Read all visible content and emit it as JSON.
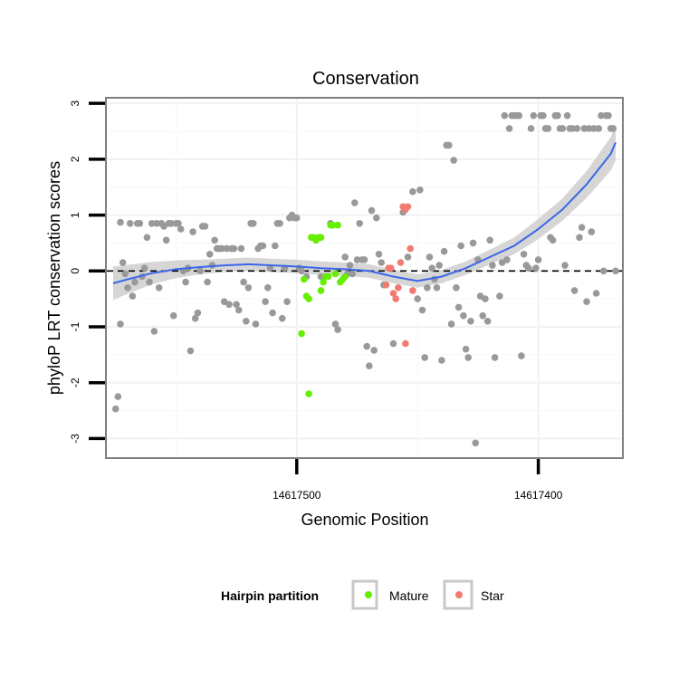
{
  "chart_data": {
    "type": "scatter",
    "title": "Conservation",
    "xlabel": "Genomic Position",
    "ylabel": "phyloP LRT conservation scores",
    "x_reversed": true,
    "xlim": [
      14617579,
      14617365
    ],
    "ylim": [
      -3.35,
      3.1
    ],
    "x_ticks": [
      {
        "value": 14617500,
        "label": "14617500"
      },
      {
        "value": 14617400,
        "label": "14617400"
      }
    ],
    "y_ticks": [
      {
        "value": 3,
        "label": "3"
      },
      {
        "value": 2,
        "label": "2"
      },
      {
        "value": 1,
        "label": "1"
      },
      {
        "value": 0,
        "label": "0"
      },
      {
        "value": -1,
        "label": "-1"
      },
      {
        "value": -2,
        "label": "-2"
      },
      {
        "value": -3,
        "label": "-3"
      }
    ],
    "reference_line": {
      "y": 0,
      "style": "dashed"
    },
    "legend": {
      "title": "Hairpin partition",
      "position": "bottom",
      "entries": [
        {
          "name": "Mature",
          "color": "#66ee00"
        },
        {
          "name": "Star",
          "color": "#f07b72"
        }
      ]
    },
    "colors": {
      "Other": "#999999",
      "Mature": "#66ee00",
      "Star": "#f07b72",
      "smooth": "#3a66e8",
      "band": "#cfcfcf"
    },
    "series": [
      {
        "name": "Other",
        "points": [
          [
            14617575,
            -2.47
          ],
          [
            14617574,
            -2.25
          ],
          [
            14617573,
            -0.95
          ],
          [
            14617573,
            0.87
          ],
          [
            14617572,
            0.15
          ],
          [
            14617571,
            -0.05
          ],
          [
            14617570,
            -0.3
          ],
          [
            14617569,
            0.85
          ],
          [
            14617568,
            -0.45
          ],
          [
            14617567,
            -0.2
          ],
          [
            14617566,
            0.85
          ],
          [
            14617565,
            0.85
          ],
          [
            14617564,
            -0.1
          ],
          [
            14617563,
            0.05
          ],
          [
            14617562,
            0.6
          ],
          [
            14617561,
            -0.2
          ],
          [
            14617560,
            0.85
          ],
          [
            14617559,
            -1.08
          ],
          [
            14617558,
            0.85
          ],
          [
            14617557,
            -0.3
          ],
          [
            14617556,
            0.85
          ],
          [
            14617555,
            0.8
          ],
          [
            14617554,
            0.55
          ],
          [
            14617553,
            0.85
          ],
          [
            14617552,
            0.85
          ],
          [
            14617551,
            -0.8
          ],
          [
            14617550,
            0.85
          ],
          [
            14617549,
            0.85
          ],
          [
            14617548,
            0.75
          ],
          [
            14617547,
            0.0
          ],
          [
            14617546,
            -0.2
          ],
          [
            14617545,
            0.05
          ],
          [
            14617544,
            -1.43
          ],
          [
            14617543,
            0.7
          ],
          [
            14617542,
            -0.85
          ],
          [
            14617541,
            -0.75
          ],
          [
            14617540,
            0.0
          ],
          [
            14617539,
            0.8
          ],
          [
            14617538,
            0.8
          ],
          [
            14617537,
            -0.2
          ],
          [
            14617536,
            0.3
          ],
          [
            14617535,
            0.1
          ],
          [
            14617534,
            0.55
          ],
          [
            14617533,
            0.4
          ],
          [
            14617532,
            0.4
          ],
          [
            14617531,
            0.4
          ],
          [
            14617530,
            -0.55
          ],
          [
            14617529,
            0.4
          ],
          [
            14617528,
            -0.6
          ],
          [
            14617527,
            0.4
          ],
          [
            14617526,
            0.4
          ],
          [
            14617525,
            -0.6
          ],
          [
            14617524,
            -0.7
          ],
          [
            14617523,
            0.4
          ],
          [
            14617522,
            -0.2
          ],
          [
            14617521,
            -0.9
          ],
          [
            14617520,
            -0.3
          ],
          [
            14617519,
            0.85
          ],
          [
            14617518,
            0.85
          ],
          [
            14617517,
            -0.95
          ],
          [
            14617516,
            0.4
          ],
          [
            14617515,
            0.45
          ],
          [
            14617514,
            0.45
          ],
          [
            14617513,
            -0.55
          ],
          [
            14617512,
            -0.3
          ],
          [
            14617511,
            0.05
          ],
          [
            14617510,
            -0.75
          ],
          [
            14617509,
            0.45
          ],
          [
            14617508,
            0.85
          ],
          [
            14617507,
            0.85
          ],
          [
            14617506,
            -0.85
          ],
          [
            14617505,
            0.05
          ],
          [
            14617504,
            -0.55
          ],
          [
            14617503,
            0.95
          ],
          [
            14617502,
            1.0
          ],
          [
            14617501,
            0.95
          ],
          [
            14617500,
            0.95
          ],
          [
            14617499,
            0.05
          ],
          [
            14617498,
            0.0
          ],
          [
            14617496,
            -0.1
          ],
          [
            14617490,
            -0.1
          ],
          [
            14617486,
            0.85
          ],
          [
            14617484,
            -0.95
          ],
          [
            14617483,
            -1.05
          ],
          [
            14617480,
            0.25
          ],
          [
            14617479,
            -0.05
          ],
          [
            14617478,
            0.1
          ],
          [
            14617477,
            -0.05
          ],
          [
            14617476,
            1.22
          ],
          [
            14617475,
            0.2
          ],
          [
            14617474,
            0.85
          ],
          [
            14617473,
            0.2
          ],
          [
            14617472,
            0.2
          ],
          [
            14617471,
            -1.35
          ],
          [
            14617470,
            -1.7
          ],
          [
            14617469,
            1.08
          ],
          [
            14617468,
            -1.42
          ],
          [
            14617467,
            0.95
          ],
          [
            14617466,
            0.3
          ],
          [
            14617465,
            0.15
          ],
          [
            14617464,
            -0.25
          ],
          [
            14617460,
            -1.3
          ],
          [
            14617456,
            1.05
          ],
          [
            14617454,
            0.25
          ],
          [
            14617452,
            1.42
          ],
          [
            14617450,
            -0.5
          ],
          [
            14617449,
            1.45
          ],
          [
            14617448,
            -0.7
          ],
          [
            14617447,
            -1.55
          ],
          [
            14617446,
            -0.3
          ],
          [
            14617445,
            0.25
          ],
          [
            14617444,
            0.05
          ],
          [
            14617443,
            -0.15
          ],
          [
            14617442,
            -0.3
          ],
          [
            14617441,
            0.1
          ],
          [
            14617440,
            -1.6
          ],
          [
            14617439,
            0.35
          ],
          [
            14617438,
            2.25
          ],
          [
            14617437,
            2.25
          ],
          [
            14617436,
            -0.95
          ],
          [
            14617435,
            1.98
          ],
          [
            14617434,
            -0.3
          ],
          [
            14617433,
            -0.65
          ],
          [
            14617432,
            0.45
          ],
          [
            14617431,
            -0.8
          ],
          [
            14617430,
            -1.4
          ],
          [
            14617429,
            -1.55
          ],
          [
            14617428,
            -0.9
          ],
          [
            14617427,
            0.5
          ],
          [
            14617426,
            -3.08
          ],
          [
            14617425,
            0.2
          ],
          [
            14617424,
            -0.45
          ],
          [
            14617423,
            -0.8
          ],
          [
            14617422,
            -0.5
          ],
          [
            14617421,
            -0.9
          ],
          [
            14617420,
            0.55
          ],
          [
            14617419,
            0.1
          ],
          [
            14617418,
            -1.55
          ],
          [
            14617416,
            -0.45
          ],
          [
            14617415,
            0.15
          ],
          [
            14617414,
            2.78
          ],
          [
            14617413,
            0.2
          ],
          [
            14617412,
            2.55
          ],
          [
            14617411,
            2.78
          ],
          [
            14617410,
            2.78
          ],
          [
            14617409,
            2.78
          ],
          [
            14617408,
            2.78
          ],
          [
            14617407,
            -1.52
          ],
          [
            14617406,
            0.3
          ],
          [
            14617405,
            0.1
          ],
          [
            14617404,
            0.05
          ],
          [
            14617403,
            2.55
          ],
          [
            14617402,
            2.78
          ],
          [
            14617401,
            0.05
          ],
          [
            14617400,
            0.2
          ],
          [
            14617399,
            2.78
          ],
          [
            14617398,
            2.78
          ],
          [
            14617397,
            2.55
          ],
          [
            14617396,
            2.55
          ],
          [
            14617395,
            0.6
          ],
          [
            14617394,
            0.55
          ],
          [
            14617393,
            2.78
          ],
          [
            14617392,
            2.78
          ],
          [
            14617391,
            2.55
          ],
          [
            14617390,
            2.55
          ],
          [
            14617389,
            0.1
          ],
          [
            14617388,
            2.78
          ],
          [
            14617387,
            2.55
          ],
          [
            14617386,
            2.55
          ],
          [
            14617385,
            -0.35
          ],
          [
            14617384,
            2.55
          ],
          [
            14617383,
            0.6
          ],
          [
            14617382,
            0.78
          ],
          [
            14617381,
            2.55
          ],
          [
            14617380,
            -0.55
          ],
          [
            14617379,
            2.55
          ],
          [
            14617378,
            0.7
          ],
          [
            14617377,
            2.55
          ],
          [
            14617376,
            -0.4
          ],
          [
            14617375,
            2.55
          ],
          [
            14617374,
            2.78
          ],
          [
            14617373,
            0.0
          ],
          [
            14617372,
            2.78
          ],
          [
            14617371,
            2.78
          ],
          [
            14617370,
            2.55
          ],
          [
            14617369,
            2.55
          ],
          [
            14617368,
            0.0
          ]
        ]
      },
      {
        "name": "Mature",
        "points": [
          [
            14617497,
            -0.15
          ],
          [
            14617496,
            -0.45
          ],
          [
            14617495,
            -0.5
          ],
          [
            14617494,
            0.6
          ],
          [
            14617493,
            0.6
          ],
          [
            14617492,
            0.55
          ],
          [
            14617491,
            0.6
          ],
          [
            14617490,
            0.6
          ],
          [
            14617489,
            -0.2
          ],
          [
            14617488,
            -0.1
          ],
          [
            14617487,
            -0.1
          ],
          [
            14617486,
            0.82
          ],
          [
            14617485,
            0.82
          ],
          [
            14617484,
            -0.05
          ],
          [
            14617483,
            0.82
          ],
          [
            14617482,
            -0.2
          ],
          [
            14617481,
            -0.15
          ],
          [
            14617480,
            -0.1
          ],
          [
            14617498,
            -1.12
          ],
          [
            14617495,
            -2.2
          ],
          [
            14617490,
            -0.35
          ]
        ]
      },
      {
        "name": "Star",
        "points": [
          [
            14617463,
            -0.25
          ],
          [
            14617462,
            0.05
          ],
          [
            14617461,
            0.05
          ],
          [
            14617460,
            -0.4
          ],
          [
            14617459,
            -0.5
          ],
          [
            14617458,
            -0.3
          ],
          [
            14617457,
            0.15
          ],
          [
            14617456,
            1.15
          ],
          [
            14617455,
            1.1
          ],
          [
            14617454,
            1.15
          ],
          [
            14617453,
            0.4
          ],
          [
            14617452,
            -0.35
          ],
          [
            14617455,
            -1.3
          ]
        ]
      }
    ],
    "smooth": {
      "x": [
        14617576,
        14617570,
        14617560,
        14617550,
        14617540,
        14617530,
        14617520,
        14617510,
        14617500,
        14617490,
        14617480,
        14617470,
        14617460,
        14617450,
        14617440,
        14617430,
        14617420,
        14617410,
        14617400,
        14617390,
        14617380,
        14617370,
        14617368
      ],
      "y": [
        -0.22,
        -0.15,
        -0.04,
        0.03,
        0.07,
        0.1,
        0.12,
        0.1,
        0.08,
        0.05,
        0.03,
        0.0,
        -0.1,
        -0.18,
        -0.1,
        0.05,
        0.25,
        0.45,
        0.75,
        1.1,
        1.55,
        2.1,
        2.3
      ],
      "band_half_width": [
        0.3,
        0.26,
        0.2,
        0.16,
        0.13,
        0.12,
        0.12,
        0.12,
        0.12,
        0.12,
        0.12,
        0.12,
        0.12,
        0.12,
        0.12,
        0.12,
        0.13,
        0.15,
        0.18,
        0.2,
        0.24,
        0.3,
        0.32
      ]
    }
  }
}
